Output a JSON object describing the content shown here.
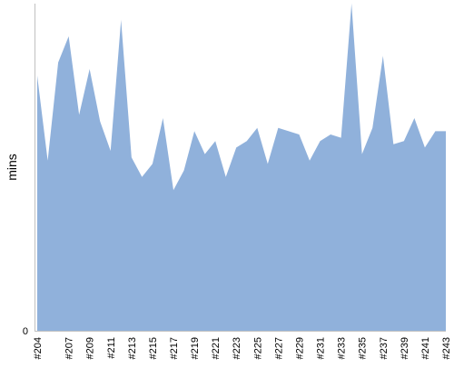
{
  "chart_data": {
    "type": "area",
    "title": "",
    "xlabel": "",
    "ylabel": "mins",
    "y_tick_labels": [
      "0"
    ],
    "grid": false,
    "legend": "none",
    "fill_color": "#90b1db",
    "axis_color": "#c0c0c0",
    "ylim": [
      0,
      100
    ],
    "x": [
      "#204",
      "#205",
      "#206",
      "#207",
      "#208",
      "#209",
      "#210",
      "#211",
      "#212",
      "#213",
      "#214",
      "#215",
      "#216",
      "#217",
      "#218",
      "#219",
      "#220",
      "#221",
      "#222",
      "#223",
      "#224",
      "#225",
      "#226",
      "#227",
      "#228",
      "#229",
      "#230",
      "#231",
      "#232",
      "#233",
      "#234",
      "#235",
      "#236",
      "#237",
      "#238",
      "#239",
      "#240",
      "#241",
      "#242",
      "#243"
    ],
    "x_tick_labels": [
      "#204",
      "#207",
      "#209",
      "#211",
      "#213",
      "#215",
      "#217",
      "#219",
      "#221",
      "#223",
      "#225",
      "#227",
      "#229",
      "#231",
      "#233",
      "#235",
      "#237",
      "#239",
      "#241",
      "#243"
    ],
    "series": [
      {
        "name": "",
        "values": [
          78,
          52,
          82,
          90,
          66,
          80,
          64,
          55,
          95,
          53,
          47,
          51,
          65,
          43,
          49,
          61,
          54,
          58,
          47,
          56,
          58,
          62,
          51,
          62,
          61,
          60,
          52,
          58,
          60,
          59,
          100,
          54,
          62,
          84,
          57,
          58,
          65,
          56,
          61,
          61
        ]
      }
    ]
  }
}
